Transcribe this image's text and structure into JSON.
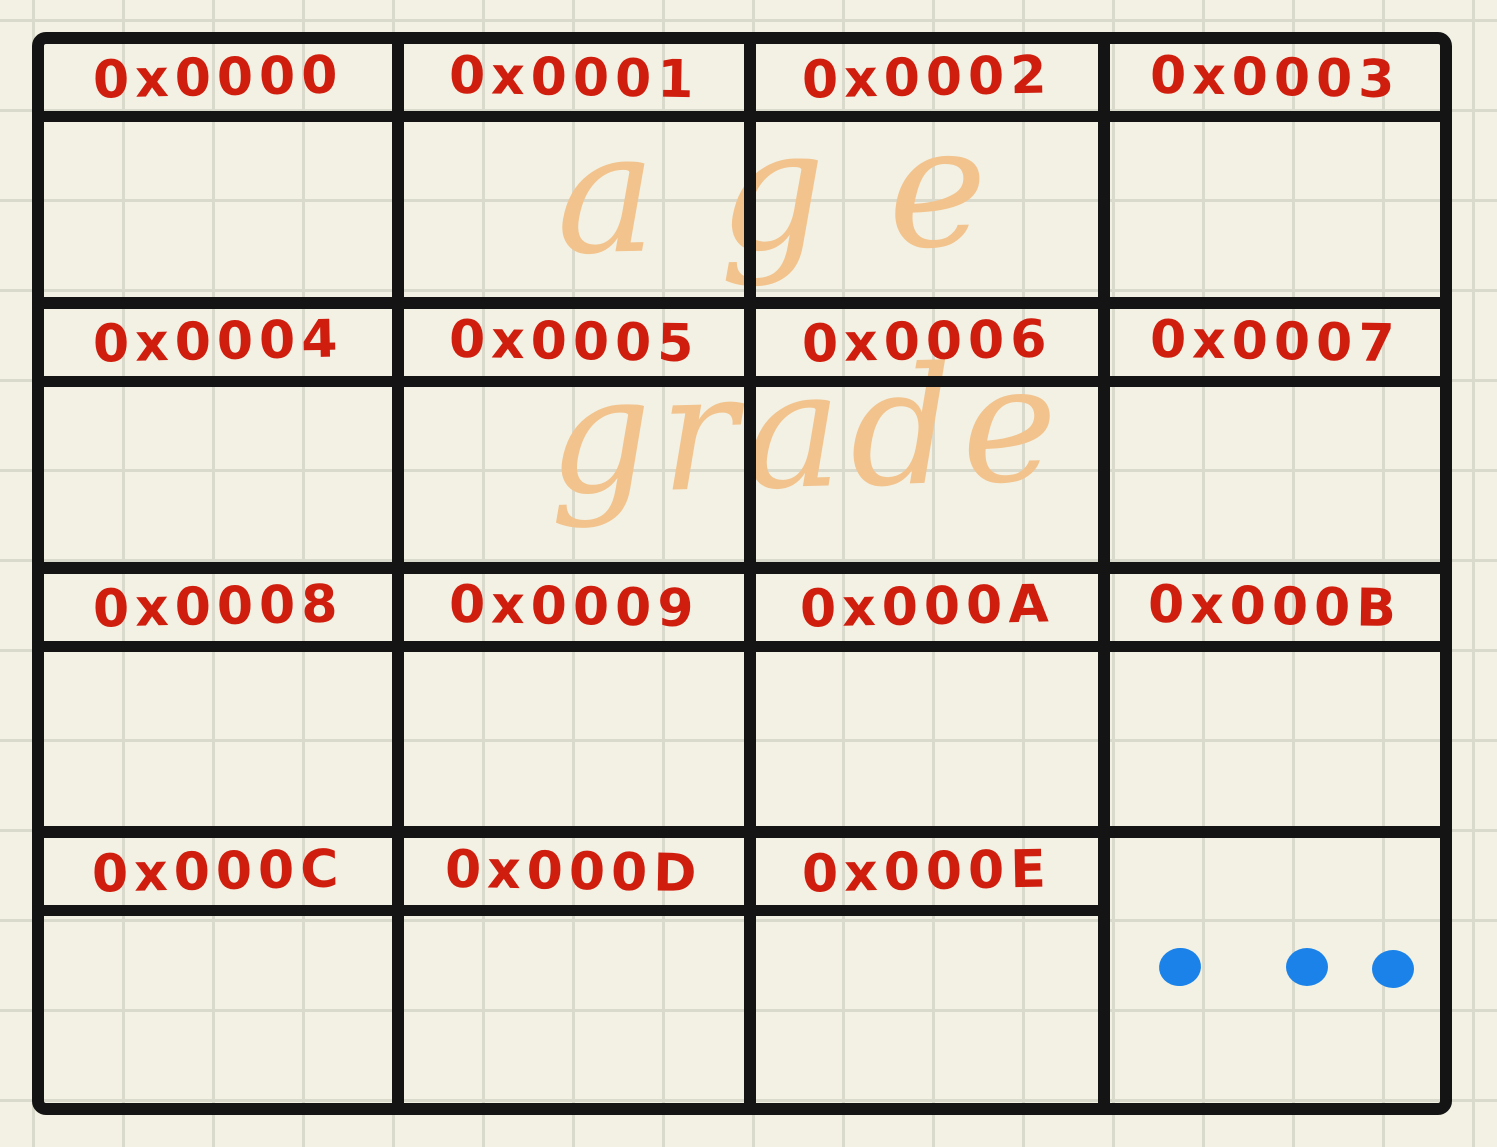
{
  "diagram": {
    "type": "memory-layout-sketch",
    "blocks": [
      {
        "addresses": [
          "0x0000",
          "0x0001",
          "0x0002",
          "0x0003"
        ]
      },
      {
        "addresses": [
          "0x0004",
          "0x0005",
          "0x0006",
          "0x0007"
        ]
      },
      {
        "addresses": [
          "0x0008",
          "0x0009",
          "0x000A",
          "0x000B"
        ]
      },
      {
        "addresses": [
          "0x000C",
          "0x000D",
          "0x000E"
        ]
      }
    ],
    "field_labels": [
      "age",
      "grade"
    ],
    "ellipsis_dot_count": 3
  },
  "colors": {
    "paper": "#f2f1e3",
    "grid_line": "#d9d9cc",
    "table_line": "#141414",
    "address_text": "#cf1d0e",
    "field_label": "#f2c38d",
    "ellipsis_dot": "#1a82e8"
  }
}
